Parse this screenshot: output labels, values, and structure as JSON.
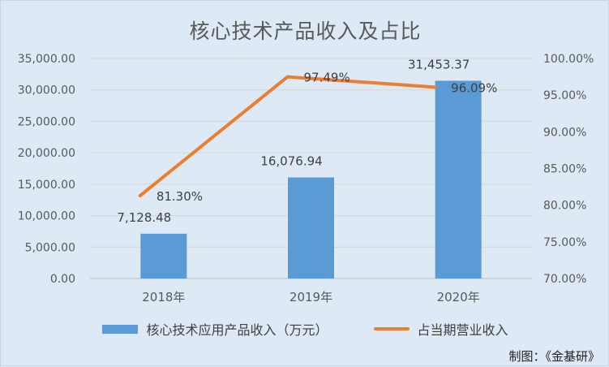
{
  "chart_data": {
    "type": "bar",
    "title": "核心技术产品收入及占比",
    "categories": [
      "2018年",
      "2019年",
      "2020年"
    ],
    "series": [
      {
        "name": "核心技术应用产品收入（万元）",
        "type": "bar",
        "axis": "left",
        "values": [
          7128.48,
          16076.94,
          31453.37
        ],
        "labels": [
          "7,128.48",
          "16,076.94",
          "31,453.37"
        ],
        "color": "#5b9bd5"
      },
      {
        "name": "占当期营业收入",
        "type": "line",
        "axis": "right",
        "values": [
          81.3,
          97.49,
          96.09
        ],
        "labels": [
          "81.30%",
          "97.49%",
          "96.09%"
        ],
        "color": "#ed7d31"
      }
    ],
    "y_left": {
      "range": [
        0,
        35000
      ],
      "ticks": [
        "0.00",
        "5,000.00",
        "10,000.00",
        "15,000.00",
        "20,000.00",
        "25,000.00",
        "30,000.00",
        "35,000.00"
      ]
    },
    "y_right": {
      "range": [
        70,
        100
      ],
      "ticks": [
        "70.00%",
        "75.00%",
        "80.00%",
        "85.00%",
        "90.00%",
        "95.00%",
        "100.00%"
      ]
    },
    "grid": true,
    "legend_position": "bottom"
  },
  "credit": "制图：《金基研》"
}
